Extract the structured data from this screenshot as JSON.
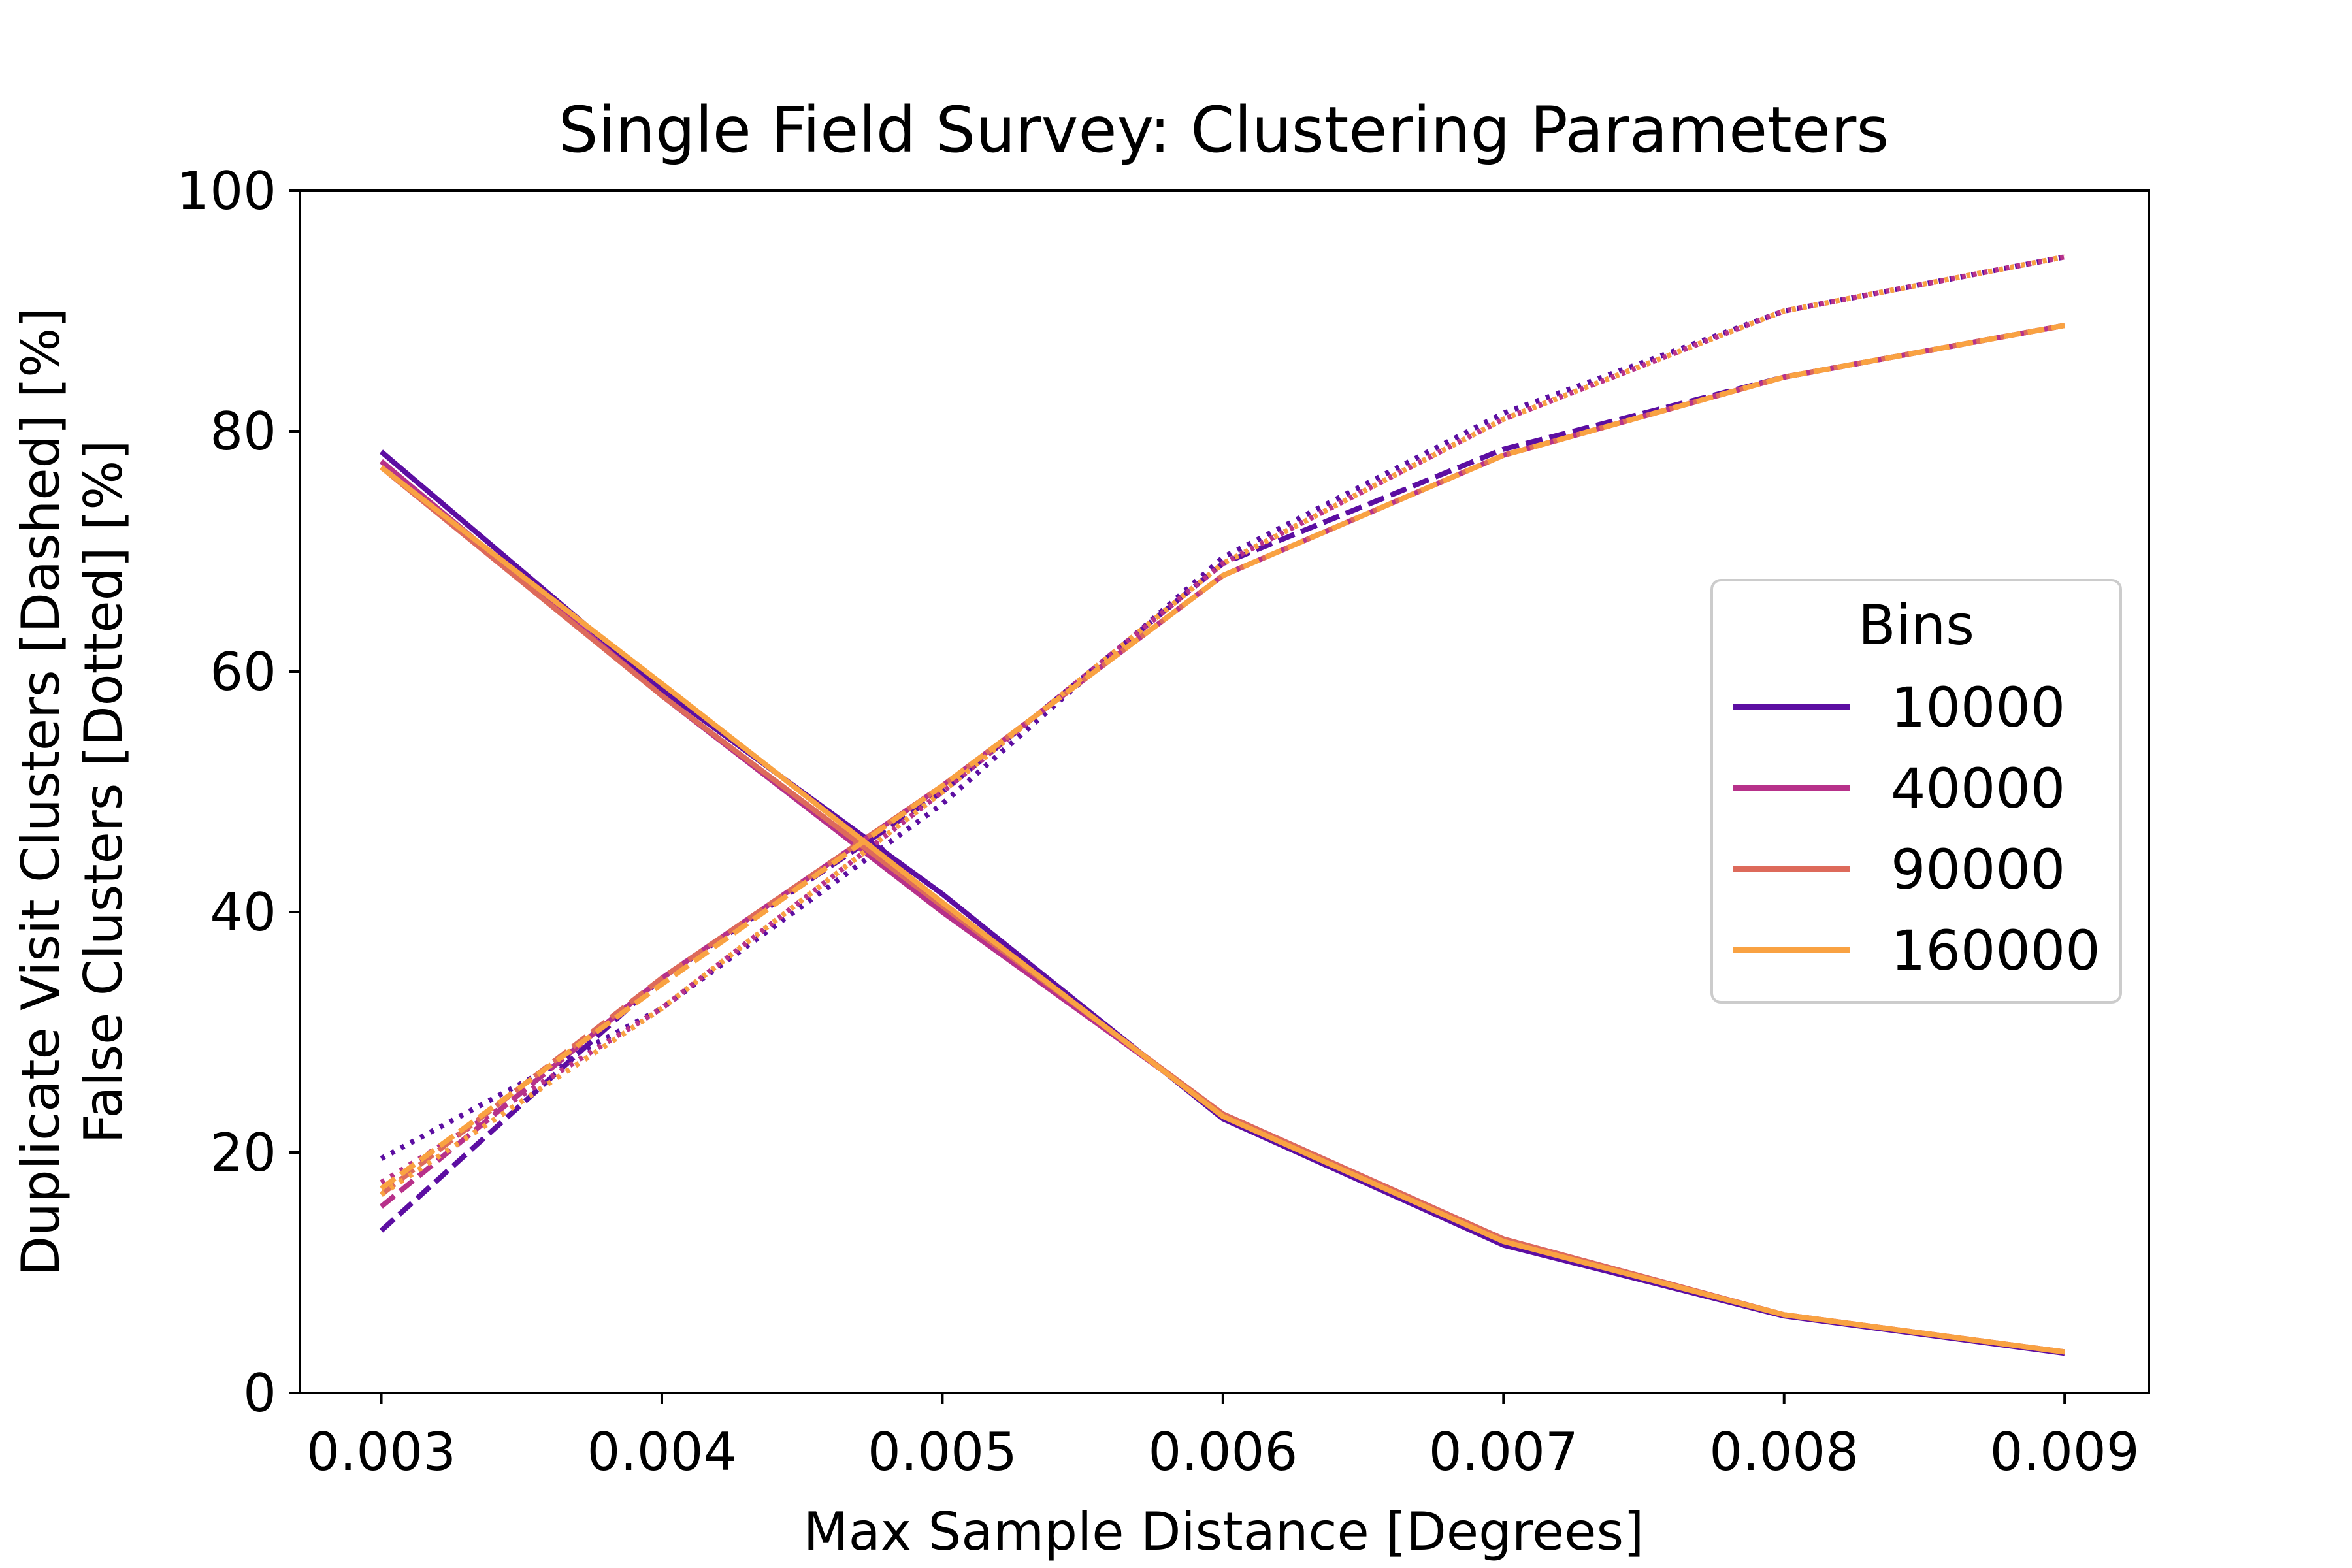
{
  "chart_data": {
    "type": "line",
    "title": "Single Field Survey: Clustering Parameters",
    "xlabel": "Max Sample Distance [Degrees]",
    "ylabel_lines": [
      "Duplicate Visit Clusters [Dashed] [%]",
      "False Clusters [Dotted] [%]"
    ],
    "xlim": [
      0.00271,
      0.0093
    ],
    "ylim": [
      0,
      100
    ],
    "grid": false,
    "x": [
      0.003,
      0.004,
      0.005,
      0.006,
      0.007,
      0.008,
      0.009
    ],
    "x_tick_labels": [
      "0.003",
      "0.004",
      "0.005",
      "0.006",
      "0.007",
      "0.008",
      "0.009"
    ],
    "y_ticks": [
      0,
      20,
      40,
      60,
      80,
      100
    ],
    "y_tick_labels": [
      "0",
      "20",
      "40",
      "60",
      "80",
      "100"
    ],
    "legend": {
      "title": "Bins",
      "position": "center-right"
    },
    "line_styles": [
      "solid",
      "dashed",
      "dotted"
    ],
    "series": [
      {
        "name": "10000",
        "color": "#5c0ea2",
        "solid": [
          78.3,
          58.5,
          41.5,
          22.8,
          12.3,
          6.4,
          3.3
        ],
        "dashed": [
          13.5,
          34.5,
          50.0,
          69.0,
          78.5,
          84.5,
          88.8
        ],
        "dotted": [
          19.5,
          32.0,
          49.0,
          69.5,
          81.5,
          90.0,
          94.5
        ]
      },
      {
        "name": "40000",
        "color": "#b7318a",
        "solid": [
          77.5,
          58.0,
          40.0,
          23.2,
          12.8,
          6.5,
          3.4
        ],
        "dashed": [
          15.5,
          34.5,
          50.5,
          68.0,
          78.0,
          84.5,
          88.8
        ],
        "dotted": [
          17.5,
          32.0,
          50.0,
          69.0,
          81.0,
          90.0,
          94.5
        ]
      },
      {
        "name": "90000",
        "color": "#dd6a5b",
        "solid": [
          77.0,
          58.0,
          40.5,
          23.2,
          12.8,
          6.5,
          3.4
        ],
        "dashed": [
          16.5,
          34.5,
          50.5,
          68.0,
          78.0,
          84.5,
          88.8
        ],
        "dotted": [
          16.5,
          32.0,
          50.0,
          69.0,
          81.0,
          90.0,
          94.5
        ]
      },
      {
        "name": "160000",
        "color": "#f9a242",
        "solid": [
          77.0,
          59.0,
          40.8,
          23.0,
          12.6,
          6.5,
          3.4
        ],
        "dashed": [
          17.0,
          34.0,
          50.5,
          68.0,
          78.0,
          84.5,
          88.8
        ],
        "dotted": [
          16.5,
          32.0,
          50.0,
          69.0,
          81.0,
          90.0,
          94.5
        ]
      }
    ]
  }
}
